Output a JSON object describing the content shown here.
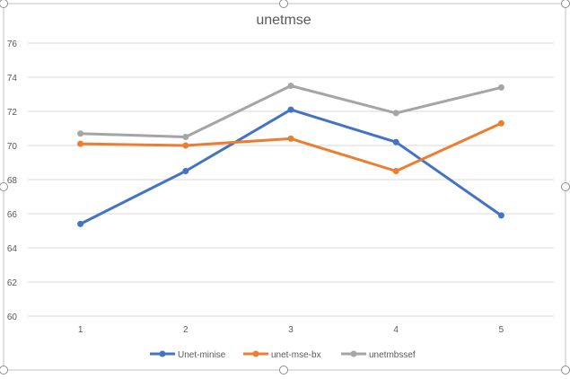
{
  "chart_data": {
    "type": "line",
    "title": "unetmse",
    "xlabel": "",
    "ylabel": "",
    "categories": [
      "1",
      "2",
      "3",
      "4",
      "5"
    ],
    "y_ticks": [
      "60",
      "62",
      "64",
      "66",
      "68",
      "70",
      "72",
      "74",
      "76"
    ],
    "ylim": [
      60,
      76
    ],
    "grid": true,
    "legend_position": "bottom",
    "series": [
      {
        "name": "Unet-minise",
        "color": "#4472C4",
        "values": [
          65.4,
          68.5,
          72.1,
          70.2,
          65.9
        ]
      },
      {
        "name": "unet-mse-bx",
        "color": "#ED7D31",
        "values": [
          70.1,
          70.0,
          70.4,
          68.5,
          71.3
        ]
      },
      {
        "name": "unetmbssef",
        "color": "#A5A5A5",
        "values": [
          70.7,
          70.5,
          73.5,
          71.9,
          73.4
        ]
      }
    ]
  }
}
